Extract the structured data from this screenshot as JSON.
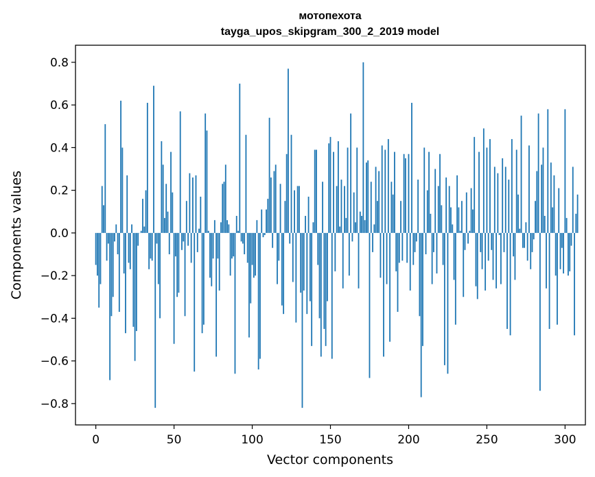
{
  "chart_data": {
    "type": "bar",
    "title": "мотопехота",
    "subtitle": "tayga_upos_skipgram_300_2_2019 model",
    "xlabel": "Vector components",
    "ylabel": "Components values",
    "xlim": [
      -13,
      313
    ],
    "ylim": [
      -0.9,
      0.88
    ],
    "xticks": [
      0,
      50,
      100,
      150,
      200,
      250,
      300
    ],
    "yticks": [
      -0.8,
      -0.6,
      -0.4,
      -0.2,
      0.0,
      0.2,
      0.4,
      0.6,
      0.8
    ],
    "ytick_labels": [
      "−0.8",
      "−0.6",
      "−0.4",
      "−0.2",
      "0.0",
      "0.2",
      "0.4",
      "0.6",
      "0.8"
    ],
    "bar_color": "#1f77b4",
    "series": [
      {
        "name": "мотопехота",
        "x_start": 0,
        "values": [
          -0.15,
          -0.2,
          -0.35,
          -0.24,
          0.22,
          0.13,
          0.51,
          -0.13,
          -0.05,
          -0.69,
          -0.39,
          -0.3,
          -0.04,
          0.04,
          -0.1,
          -0.37,
          0.62,
          0.4,
          -0.19,
          -0.47,
          0.27,
          -0.14,
          -0.17,
          0.04,
          -0.44,
          -0.6,
          -0.46,
          -0.06,
          0.0,
          0.01,
          0.16,
          0.03,
          0.2,
          0.61,
          -0.17,
          -0.12,
          -0.13,
          0.69,
          -0.82,
          -0.05,
          -0.24,
          -0.4,
          0.43,
          0.32,
          0.07,
          0.23,
          0.1,
          -0.1,
          0.38,
          0.19,
          -0.52,
          -0.11,
          -0.3,
          -0.28,
          0.57,
          -0.08,
          -0.04,
          -0.39,
          0.15,
          -0.06,
          0.28,
          -0.14,
          0.26,
          -0.65,
          0.27,
          -0.09,
          0.02,
          0.17,
          -0.47,
          -0.43,
          0.56,
          0.48,
          0.01,
          -0.21,
          -0.25,
          -0.12,
          0.06,
          -0.58,
          -0.12,
          -0.27,
          0.05,
          0.23,
          0.24,
          0.32,
          0.06,
          0.04,
          -0.2,
          -0.12,
          -0.11,
          -0.66,
          0.08,
          0.01,
          0.7,
          -0.04,
          -0.05,
          -0.1,
          0.46,
          -0.14,
          -0.49,
          -0.33,
          -0.15,
          -0.21,
          -0.2,
          0.06,
          -0.64,
          -0.59,
          0.11,
          -0.02,
          -0.01,
          0.11,
          0.16,
          0.54,
          0.26,
          -0.07,
          0.29,
          0.32,
          -0.24,
          -0.13,
          0.23,
          -0.34,
          -0.38,
          0.15,
          0.37,
          0.77,
          -0.05,
          0.46,
          -0.23,
          0.2,
          -0.42,
          0.22,
          0.22,
          -0.28,
          -0.82,
          -0.27,
          0.08,
          -0.38,
          0.17,
          -0.32,
          -0.53,
          0.05,
          0.39,
          0.39,
          -0.15,
          -0.4,
          -0.58,
          0.24,
          -0.45,
          -0.53,
          -0.32,
          0.42,
          0.45,
          -0.59,
          0.38,
          -0.18,
          0.22,
          0.43,
          0.03,
          0.25,
          -0.26,
          0.22,
          0.07,
          0.4,
          -0.2,
          0.56,
          -0.04,
          0.19,
          0.05,
          0.4,
          -0.26,
          0.1,
          0.08,
          0.8,
          0.06,
          0.33,
          0.34,
          -0.68,
          0.24,
          -0.09,
          0.04,
          0.31,
          0.15,
          0.29,
          -0.21,
          0.41,
          -0.58,
          0.39,
          -0.24,
          0.44,
          -0.51,
          0.24,
          0.18,
          0.38,
          -0.18,
          -0.37,
          -0.14,
          0.15,
          -0.13,
          0.37,
          0.35,
          -0.14,
          0.37,
          -0.27,
          0.61,
          -0.15,
          -0.09,
          -0.04,
          0.25,
          -0.39,
          -0.77,
          -0.53,
          0.4,
          -0.1,
          0.2,
          0.38,
          0.09,
          -0.24,
          -0.09,
          0.3,
          -0.19,
          0.22,
          0.37,
          0.13,
          -0.15,
          -0.62,
          0.26,
          -0.66,
          0.22,
          0.12,
          0.04,
          -0.22,
          -0.43,
          0.27,
          0.12,
          0.01,
          0.15,
          -0.3,
          -0.08,
          0.19,
          -0.05,
          0.01,
          0.21,
          0.11,
          0.45,
          -0.25,
          -0.31,
          0.38,
          -0.09,
          -0.17,
          0.49,
          -0.27,
          0.4,
          -0.13,
          0.44,
          -0.08,
          -0.22,
          0.31,
          -0.26,
          0.28,
          -0.01,
          -0.24,
          0.35,
          -0.09,
          0.31,
          -0.45,
          0.25,
          -0.48,
          0.44,
          -0.11,
          -0.22,
          0.39,
          0.18,
          0.02,
          0.55,
          -0.07,
          -0.07,
          0.05,
          -0.13,
          0.41,
          -0.17,
          -0.09,
          -0.03,
          0.15,
          0.29,
          0.56,
          -0.74,
          0.32,
          0.4,
          0.08,
          -0.26,
          0.58,
          -0.45,
          0.33,
          0.12,
          0.27,
          -0.2,
          -0.43,
          0.21,
          -0.17,
          -0.07,
          -0.19,
          0.58,
          0.07,
          -0.2,
          -0.18,
          -0.06,
          0.31,
          -0.48,
          0.09,
          0.18
        ]
      }
    ]
  }
}
